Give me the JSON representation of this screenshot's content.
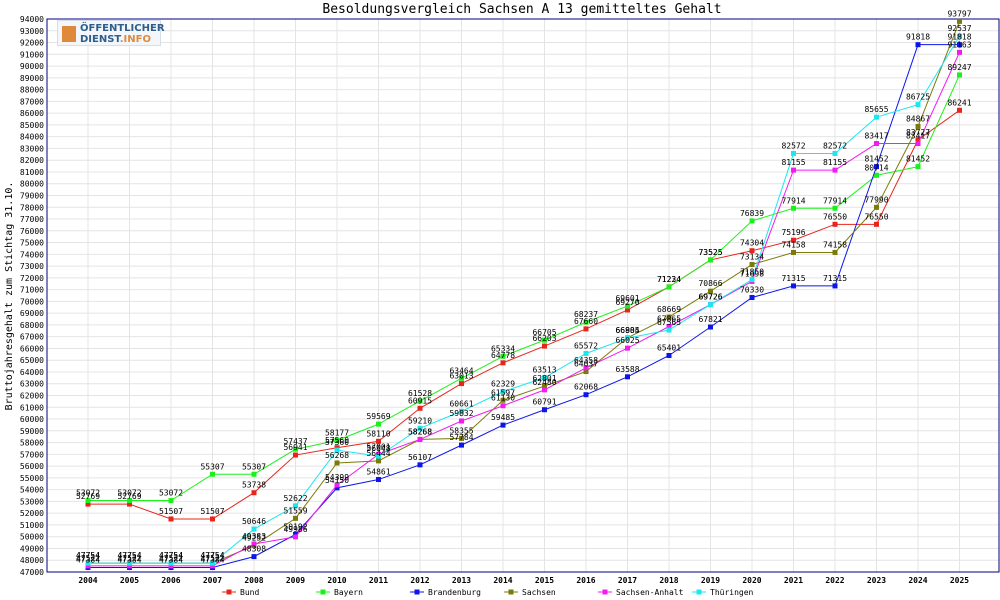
{
  "logo": {
    "line1": "ÖFFENTLICHER",
    "line2": "DIENST",
    "line2_suffix": ".INFO"
  },
  "chart_data": {
    "type": "line",
    "title": "Besoldungsvergleich Sachsen A 13 gemitteltes Gehalt",
    "xlabel": "",
    "ylabel": "Bruttojahresgehalt zum Stichtag 31.10.",
    "ylim": [
      47000,
      94000
    ],
    "ytick_step": 1000,
    "grid": true,
    "legend_position": "bottom",
    "categories": [
      "2004",
      "2005",
      "2006",
      "2007",
      "2008",
      "2009",
      "2010",
      "2011",
      "2012",
      "2013",
      "2014",
      "2015",
      "2016",
      "2017",
      "2018",
      "2019",
      "2020",
      "2021",
      "2022",
      "2023",
      "2024",
      "2025"
    ],
    "series": [
      {
        "name": "Bund",
        "color": "#e8251b",
        "values": [
          52769,
          52769,
          51507,
          51507,
          53738,
          56941,
          57560,
          58110,
          60915,
          63013,
          64778,
          66203,
          67660,
          69270,
          71234,
          73525,
          74304,
          75196,
          76550,
          76550,
          83727,
          86241
        ]
      },
      {
        "name": "Bayern",
        "color": "#1cf01c",
        "values": [
          53072,
          53072,
          53072,
          55307,
          55307,
          57437,
          58177,
          59569,
          61528,
          63464,
          65334,
          66705,
          68237,
          69601,
          71224,
          73525,
          76839,
          77914,
          77914,
          80714,
          81452,
          89247
        ]
      },
      {
        "name": "Brandenburg",
        "color": "#0d16e8",
        "values": [
          47384,
          47384,
          47384,
          47384,
          48308,
          50192,
          54150,
          54861,
          56107,
          57784,
          59485,
          60791,
          62068,
          63588,
          65401,
          67821,
          70330,
          71315,
          71315,
          81452,
          91818,
          91818
        ]
      },
      {
        "name": "Sachsen",
        "color": "#7b7b0b",
        "values": [
          47754,
          47754,
          47754,
          47754,
          49252,
          51559,
          56268,
          56444,
          58268,
          58355,
          61597,
          62801,
          64037,
          66905,
          68669,
          70866,
          73134,
          74158,
          74158,
          77990,
          84867,
          93797
        ]
      },
      {
        "name": "Sachsen-Anhalt",
        "color": "#f01cf0",
        "values": [
          47522,
          47522,
          47522,
          47522,
          49383,
          49986,
          54399,
          57001,
          58268,
          59832,
          61130,
          62480,
          64358,
          66025,
          67865,
          69726,
          71698,
          81155,
          81155,
          83417,
          83417,
          91163
        ]
      },
      {
        "name": "Thüringen",
        "color": "#1ce6f0",
        "values": [
          47754,
          47754,
          47754,
          47754,
          50646,
          52622,
          57360,
          56848,
          59210,
          60661,
          62329,
          63513,
          65572,
          66884,
          67565,
          69726,
          71850,
          82572,
          82572,
          85655,
          86725,
          92537
        ]
      }
    ]
  }
}
